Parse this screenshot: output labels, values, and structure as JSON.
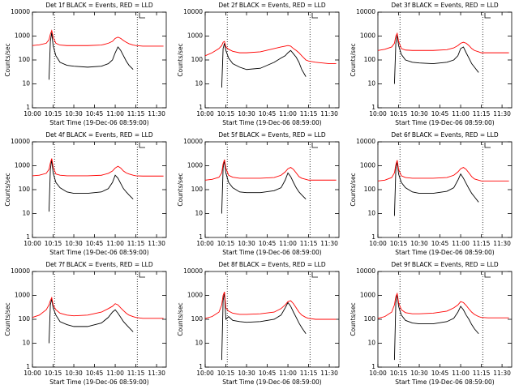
{
  "chart_data": [
    {
      "type": "line",
      "title": "Det 1f BLACK = Events, RED = LLD",
      "xlabel": "Start Time (19-Dec-06 08:59:00)",
      "ylabel": "Counts/sec",
      "log_y": true,
      "x": [
        "10:00",
        "10:05",
        "10:10",
        "10:12",
        "10:13",
        "10:14",
        "10:15",
        "10:17",
        "10:20",
        "10:25",
        "10:30",
        "10:40",
        "10:50",
        "10:55",
        "10:58",
        "11:00",
        "11:02",
        "11:04",
        "11:06",
        "11:08",
        "11:10",
        "11:13",
        "11:15",
        "11:20",
        "11:25",
        "11:30",
        "11:35"
      ],
      "xlim": [
        "10:00",
        "11:37"
      ],
      "xticks": [
        "10:00",
        "10:15",
        "10:30",
        "10:45",
        "11:00",
        "11:15",
        "11:30"
      ],
      "ylim": [
        1,
        10000
      ],
      "yticks": [
        1,
        10,
        100,
        1000,
        10000
      ],
      "vlines": [
        "10:16",
        "11:16"
      ],
      "series": [
        {
          "color": "#000000",
          "values": [
            null,
            null,
            null,
            15,
            600,
            1400,
            400,
            150,
            80,
            60,
            55,
            50,
            55,
            70,
            100,
            200,
            350,
            250,
            150,
            90,
            60,
            40,
            null,
            null,
            null,
            null,
            null
          ]
        },
        {
          "color": "#ff0000",
          "values": [
            400,
            430,
            500,
            700,
            1200,
            1700,
            900,
            500,
            420,
            400,
            400,
            400,
            420,
            500,
            600,
            800,
            900,
            800,
            650,
            550,
            480,
            420,
            400,
            380,
            380,
            380,
            380
          ]
        }
      ]
    },
    {
      "type": "line",
      "title": "Det 2f BLACK = Events, RED = LLD",
      "xlabel": "Start Time (19-Dec-06 08:59:00)",
      "ylabel": "Counts/sec",
      "log_y": true,
      "x": [
        "10:00",
        "10:05",
        "10:10",
        "10:12",
        "10:13",
        "10:14",
        "10:15",
        "10:17",
        "10:20",
        "10:25",
        "10:30",
        "10:40",
        "10:50",
        "10:55",
        "10:58",
        "11:00",
        "11:02",
        "11:04",
        "11:06",
        "11:08",
        "11:10",
        "11:13",
        "11:15",
        "11:20",
        "11:25",
        "11:30",
        "11:35"
      ],
      "xlim": [
        "10:00",
        "11:37"
      ],
      "xticks": [
        "10:00",
        "10:15",
        "10:30",
        "10:45",
        "11:00",
        "11:15",
        "11:30"
      ],
      "ylim": [
        1,
        10000
      ],
      "yticks": [
        1,
        10,
        100,
        1000,
        10000
      ],
      "vlines": [
        "10:16",
        "11:16"
      ],
      "series": [
        {
          "color": "#000000",
          "values": [
            null,
            null,
            null,
            7,
            300,
            500,
            250,
            120,
            70,
            50,
            40,
            45,
            80,
            120,
            150,
            200,
            250,
            180,
            130,
            80,
            40,
            20,
            null,
            null,
            null,
            null,
            null
          ]
        },
        {
          "color": "#ff0000",
          "values": [
            150,
            200,
            300,
            400,
            550,
            600,
            350,
            280,
            230,
            200,
            200,
            220,
            300,
            350,
            380,
            400,
            380,
            300,
            250,
            200,
            150,
            100,
            90,
            80,
            75,
            70,
            70
          ]
        }
      ]
    },
    {
      "type": "line",
      "title": "Det 3f BLACK = Events, RED = LLD",
      "xlabel": "Start Time (19-Dec-06 08:59:00)",
      "ylabel": "Counts/sec",
      "log_y": true,
      "x": [
        "10:00",
        "10:05",
        "10:10",
        "10:12",
        "10:13",
        "10:14",
        "10:15",
        "10:17",
        "10:20",
        "10:25",
        "10:30",
        "10:40",
        "10:50",
        "10:55",
        "10:58",
        "11:00",
        "11:02",
        "11:04",
        "11:06",
        "11:08",
        "11:10",
        "11:13",
        "11:15",
        "11:20",
        "11:25",
        "11:30",
        "11:35"
      ],
      "xlim": [
        "10:00",
        "11:37"
      ],
      "xticks": [
        "10:00",
        "10:15",
        "10:30",
        "10:45",
        "11:00",
        "11:15",
        "11:30"
      ],
      "ylim": [
        1,
        10000
      ],
      "yticks": [
        1,
        10,
        100,
        1000,
        10000
      ],
      "vlines": [
        "10:16",
        "11:16"
      ],
      "series": [
        {
          "color": "#000000",
          "values": [
            null,
            null,
            null,
            10,
            500,
            1100,
            400,
            170,
            100,
            80,
            75,
            70,
            80,
            100,
            150,
            300,
            350,
            200,
            120,
            70,
            50,
            30,
            null,
            null,
            null,
            null,
            null
          ]
        },
        {
          "color": "#ff0000",
          "values": [
            250,
            280,
            350,
            500,
            1000,
            1300,
            600,
            300,
            260,
            250,
            250,
            250,
            270,
            320,
            400,
            500,
            550,
            500,
            400,
            300,
            250,
            220,
            200,
            200,
            200,
            200,
            200
          ]
        }
      ]
    },
    {
      "type": "line",
      "title": "Det 4f BLACK = Events, RED = LLD",
      "xlabel": "Start Time (19-Dec-06 08:59:00)",
      "ylabel": "Counts/sec",
      "log_y": true,
      "x": [
        "10:00",
        "10:05",
        "10:10",
        "10:12",
        "10:13",
        "10:14",
        "10:15",
        "10:17",
        "10:20",
        "10:25",
        "10:30",
        "10:40",
        "10:50",
        "10:55",
        "10:58",
        "11:00",
        "11:02",
        "11:04",
        "11:06",
        "11:08",
        "11:10",
        "11:13",
        "11:15",
        "11:20",
        "11:25",
        "11:30",
        "11:35"
      ],
      "xlim": [
        "10:00",
        "11:37"
      ],
      "xticks": [
        "10:00",
        "10:15",
        "10:30",
        "10:45",
        "11:00",
        "11:15",
        "11:30"
      ],
      "ylim": [
        1,
        10000
      ],
      "yticks": [
        1,
        10,
        100,
        1000,
        10000
      ],
      "vlines": [
        "10:16",
        "11:16"
      ],
      "series": [
        {
          "color": "#000000",
          "values": [
            null,
            null,
            null,
            12,
            700,
            1800,
            500,
            200,
            120,
            80,
            70,
            70,
            80,
            110,
            200,
            400,
            300,
            180,
            110,
            80,
            60,
            40,
            null,
            null,
            null,
            null,
            null
          ]
        },
        {
          "color": "#ff0000",
          "values": [
            380,
            400,
            480,
            700,
            1300,
            2000,
            900,
            450,
            400,
            380,
            380,
            380,
            400,
            480,
            600,
            800,
            950,
            800,
            600,
            500,
            450,
            400,
            380,
            370,
            370,
            370,
            370
          ]
        }
      ]
    },
    {
      "type": "line",
      "title": "Det 5f BLACK = Events, RED = LLD",
      "xlabel": "Start Time (19-Dec-06 08:59:00)",
      "ylabel": "Counts/sec",
      "log_y": true,
      "x": [
        "10:00",
        "10:05",
        "10:10",
        "10:12",
        "10:13",
        "10:14",
        "10:15",
        "10:17",
        "10:20",
        "10:25",
        "10:30",
        "10:40",
        "10:50",
        "10:55",
        "10:58",
        "11:00",
        "11:02",
        "11:04",
        "11:06",
        "11:08",
        "11:10",
        "11:13",
        "11:15",
        "11:20",
        "11:25",
        "11:30",
        "11:35"
      ],
      "xlim": [
        "10:00",
        "11:37"
      ],
      "xticks": [
        "10:00",
        "10:15",
        "10:30",
        "10:45",
        "11:00",
        "11:15",
        "11:30"
      ],
      "ylim": [
        1,
        10000
      ],
      "yticks": [
        1,
        10,
        100,
        1000,
        10000
      ],
      "vlines": [
        "10:16",
        "11:16"
      ],
      "series": [
        {
          "color": "#000000",
          "values": [
            null,
            null,
            null,
            10,
            800,
            1700,
            500,
            200,
            120,
            80,
            75,
            75,
            90,
            120,
            250,
            500,
            350,
            200,
            120,
            80,
            60,
            40,
            null,
            null,
            null,
            null,
            null
          ]
        },
        {
          "color": "#ff0000",
          "values": [
            250,
            270,
            330,
            500,
            1200,
            1800,
            800,
            400,
            330,
            300,
            300,
            300,
            320,
            400,
            550,
            750,
            850,
            700,
            500,
            350,
            300,
            270,
            250,
            250,
            250,
            250,
            250
          ]
        }
      ]
    },
    {
      "type": "line",
      "title": "Det 6f BLACK = Events, RED = LLD",
      "xlabel": "Start Time (19-Dec-06 08:59:00)",
      "ylabel": "Counts/sec",
      "log_y": true,
      "x": [
        "10:00",
        "10:05",
        "10:10",
        "10:12",
        "10:13",
        "10:14",
        "10:15",
        "10:17",
        "10:20",
        "10:25",
        "10:30",
        "10:40",
        "10:50",
        "10:55",
        "10:58",
        "11:00",
        "11:02",
        "11:04",
        "11:06",
        "11:08",
        "11:10",
        "11:13",
        "11:15",
        "11:20",
        "11:25",
        "11:30",
        "11:35"
      ],
      "xlim": [
        "10:00",
        "11:37"
      ],
      "xticks": [
        "10:00",
        "10:15",
        "10:30",
        "10:45",
        "11:00",
        "11:15",
        "11:30"
      ],
      "ylim": [
        1,
        10000
      ],
      "yticks": [
        1,
        10,
        100,
        1000,
        10000
      ],
      "vlines": [
        "10:16",
        "11:16"
      ],
      "series": [
        {
          "color": "#000000",
          "values": [
            null,
            null,
            null,
            8,
            700,
            1500,
            450,
            200,
            120,
            80,
            70,
            70,
            85,
            120,
            250,
            450,
            300,
            180,
            110,
            70,
            50,
            30,
            null,
            null,
            null,
            null,
            null
          ]
        },
        {
          "color": "#ff0000",
          "values": [
            230,
            250,
            320,
            500,
            1100,
            1700,
            700,
            380,
            320,
            300,
            300,
            300,
            320,
            400,
            550,
            750,
            850,
            700,
            500,
            350,
            280,
            250,
            230,
            230,
            230,
            230,
            230
          ]
        }
      ]
    },
    {
      "type": "line",
      "title": "Det 7f BLACK = Events, RED = LLD",
      "xlabel": "Start Time (19-Dec-06 08:59:00)",
      "ylabel": "Counts/sec",
      "log_y": true,
      "x": [
        "10:00",
        "10:05",
        "10:10",
        "10:12",
        "10:13",
        "10:14",
        "10:15",
        "10:17",
        "10:20",
        "10:25",
        "10:30",
        "10:40",
        "10:50",
        "10:55",
        "10:58",
        "11:00",
        "11:02",
        "11:04",
        "11:06",
        "11:08",
        "11:10",
        "11:13",
        "11:15",
        "11:20",
        "11:25",
        "11:30",
        "11:35"
      ],
      "xlim": [
        "10:00",
        "11:37"
      ],
      "xticks": [
        "10:00",
        "10:15",
        "10:30",
        "10:45",
        "11:00",
        "11:15",
        "11:30"
      ],
      "ylim": [
        1,
        10000
      ],
      "yticks": [
        1,
        10,
        100,
        1000,
        10000
      ],
      "vlines": [
        "10:16",
        "11:16"
      ],
      "series": [
        {
          "color": "#000000",
          "values": [
            null,
            null,
            null,
            10,
            400,
            700,
            300,
            150,
            80,
            60,
            50,
            50,
            70,
            120,
            200,
            250,
            180,
            120,
            80,
            60,
            45,
            30,
            null,
            null,
            null,
            null,
            null
          ]
        },
        {
          "color": "#ff0000",
          "values": [
            120,
            150,
            250,
            400,
            600,
            800,
            400,
            250,
            180,
            150,
            140,
            150,
            200,
            280,
            350,
            450,
            400,
            300,
            230,
            180,
            150,
            130,
            120,
            110,
            110,
            110,
            110
          ]
        }
      ]
    },
    {
      "type": "line",
      "title": "Det 8f BLACK = Events, RED = LLD",
      "xlabel": "Start Time (19-Dec-06 08:59:00)",
      "ylabel": "Counts/sec",
      "log_y": true,
      "x": [
        "10:00",
        "10:05",
        "10:10",
        "10:12",
        "10:13",
        "10:14",
        "10:15",
        "10:17",
        "10:20",
        "10:25",
        "10:30",
        "10:40",
        "10:50",
        "10:55",
        "10:58",
        "11:00",
        "11:02",
        "11:04",
        "11:06",
        "11:08",
        "11:10",
        "11:13",
        "11:15",
        "11:20",
        "11:25",
        "11:30",
        "11:35"
      ],
      "xlim": [
        "10:00",
        "11:37"
      ],
      "xticks": [
        "10:00",
        "10:15",
        "10:30",
        "10:45",
        "11:00",
        "11:15",
        "11:30"
      ],
      "ylim": [
        1,
        10000
      ],
      "yticks": [
        1,
        10,
        100,
        1000,
        10000
      ],
      "vlines": [
        "10:16",
        "11:16"
      ],
      "series": [
        {
          "color": "#000000",
          "values": [
            null,
            null,
            null,
            2,
            600,
            1300,
            100,
            130,
            90,
            80,
            75,
            80,
            100,
            150,
            300,
            500,
            350,
            200,
            120,
            70,
            45,
            25,
            null,
            null,
            null,
            null,
            null
          ]
        },
        {
          "color": "#ff0000",
          "values": [
            110,
            130,
            200,
            400,
            1000,
            1400,
            300,
            220,
            180,
            160,
            160,
            170,
            200,
            280,
            400,
            550,
            600,
            450,
            300,
            200,
            150,
            120,
            110,
            100,
            100,
            100,
            100
          ]
        }
      ]
    },
    {
      "type": "line",
      "title": "Det 9f BLACK = Events, RED = LLD",
      "xlabel": "Start Time (19-Dec-06 08:59:00)",
      "ylabel": "Counts/sec",
      "log_y": true,
      "x": [
        "10:00",
        "10:05",
        "10:10",
        "10:12",
        "10:13",
        "10:14",
        "10:15",
        "10:17",
        "10:20",
        "10:25",
        "10:30",
        "10:40",
        "10:50",
        "10:55",
        "10:58",
        "11:00",
        "11:02",
        "11:04",
        "11:06",
        "11:08",
        "11:10",
        "11:13",
        "11:15",
        "11:20",
        "11:25",
        "11:30",
        "11:35"
      ],
      "xlim": [
        "10:00",
        "11:37"
      ],
      "xticks": [
        "10:00",
        "10:15",
        "10:30",
        "10:45",
        "11:00",
        "11:15",
        "11:30"
      ],
      "ylim": [
        1,
        10000
      ],
      "yticks": [
        1,
        10,
        100,
        1000,
        10000
      ],
      "vlines": [
        "10:16",
        "11:16"
      ],
      "series": [
        {
          "color": "#000000",
          "values": [
            null,
            null,
            null,
            2,
            500,
            1100,
            350,
            150,
            90,
            70,
            65,
            65,
            80,
            110,
            200,
            350,
            250,
            150,
            100,
            60,
            40,
            25,
            null,
            null,
            null,
            null,
            null
          ]
        },
        {
          "color": "#ff0000",
          "values": [
            110,
            130,
            200,
            400,
            900,
            1200,
            500,
            250,
            190,
            170,
            170,
            180,
            220,
            300,
            400,
            550,
            500,
            380,
            270,
            200,
            160,
            130,
            120,
            115,
            115,
            115,
            115
          ]
        }
      ]
    }
  ]
}
